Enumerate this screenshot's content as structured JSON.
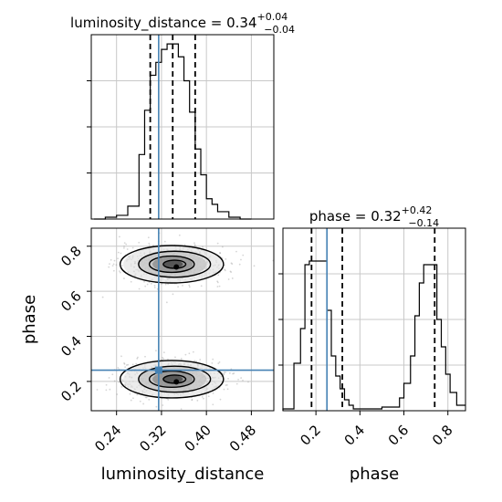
{
  "chart_data": [
    {
      "type": "histogram",
      "panel": "luminosity_distance",
      "title": {
        "param": "luminosity_distance",
        "median": "0.34",
        "plus": "+0.04",
        "minus": "−0.04"
      },
      "xlim": [
        0.195,
        0.52
      ],
      "ylim": [
        0,
        1.0
      ],
      "bins": {
        "edges": [
          0.2,
          0.22,
          0.24,
          0.26,
          0.28,
          0.29,
          0.3,
          0.31,
          0.32,
          0.33,
          0.34,
          0.35,
          0.36,
          0.37,
          0.38,
          0.39,
          0.4,
          0.41,
          0.42,
          0.44,
          0.46,
          0.48
        ],
        "counts": [
          0.0,
          0.01,
          0.02,
          0.07,
          0.35,
          0.59,
          0.78,
          0.85,
          0.92,
          0.95,
          0.95,
          0.88,
          0.75,
          0.58,
          0.38,
          0.24,
          0.11,
          0.08,
          0.04,
          0.01,
          0.0
        ]
      },
      "quantiles": [
        0.3,
        0.34,
        0.38
      ],
      "truth": 0.315,
      "xticks": []
    },
    {
      "type": "scatter",
      "panel": "2d",
      "xlabel": "luminosity_distance",
      "ylabel": "phase",
      "xlim": [
        0.195,
        0.52
      ],
      "ylim": [
        0.07,
        0.88
      ],
      "xticks": [
        "0.24",
        "0.32",
        "0.40",
        "0.48"
      ],
      "xtick_values": [
        0.24,
        0.32,
        0.4,
        0.48
      ],
      "yticks": [
        "0.2",
        "0.4",
        "0.6",
        "0.8"
      ],
      "ytick_values": [
        0.2,
        0.4,
        0.6,
        0.8
      ],
      "clusters": [
        {
          "cx": 0.34,
          "cy": 0.72,
          "sx": 0.04,
          "sy": 0.038
        },
        {
          "cx": 0.34,
          "cy": 0.21,
          "sx": 0.04,
          "sy": 0.038
        }
      ],
      "truth": {
        "x": 0.315,
        "y": 0.25
      }
    },
    {
      "type": "histogram",
      "panel": "phase",
      "title": {
        "param": "phase",
        "median": "0.32",
        "plus": "+0.42",
        "minus": "−0.14"
      },
      "xlabel": "phase",
      "xlim": [
        0.05,
        0.88
      ],
      "ylim": [
        0,
        1.0
      ],
      "xticks": [
        "0.2",
        "0.4",
        "0.6",
        "0.8"
      ],
      "xtick_values": [
        0.2,
        0.4,
        0.6,
        0.8
      ],
      "bins": {
        "edges": [
          0.05,
          0.1,
          0.13,
          0.15,
          0.17,
          0.19,
          0.21,
          0.23,
          0.25,
          0.27,
          0.29,
          0.31,
          0.33,
          0.35,
          0.37,
          0.4,
          0.5,
          0.58,
          0.6,
          0.63,
          0.65,
          0.67,
          0.69,
          0.71,
          0.73,
          0.75,
          0.77,
          0.79,
          0.81,
          0.84,
          0.88
        ],
        "counts": [
          0.01,
          0.26,
          0.45,
          0.8,
          0.82,
          0.82,
          0.82,
          0.82,
          0.55,
          0.3,
          0.19,
          0.12,
          0.06,
          0.03,
          0.01,
          0.01,
          0.02,
          0.07,
          0.15,
          0.3,
          0.52,
          0.7,
          0.8,
          0.8,
          0.8,
          0.5,
          0.35,
          0.2,
          0.1,
          0.03
        ]
      },
      "quantiles": [
        0.18,
        0.32,
        0.74
      ],
      "truth": 0.25,
      "yticks": []
    }
  ],
  "colors": {
    "truth": "#4682b4",
    "hist": "#000000",
    "grid": "#c8c8c8"
  }
}
